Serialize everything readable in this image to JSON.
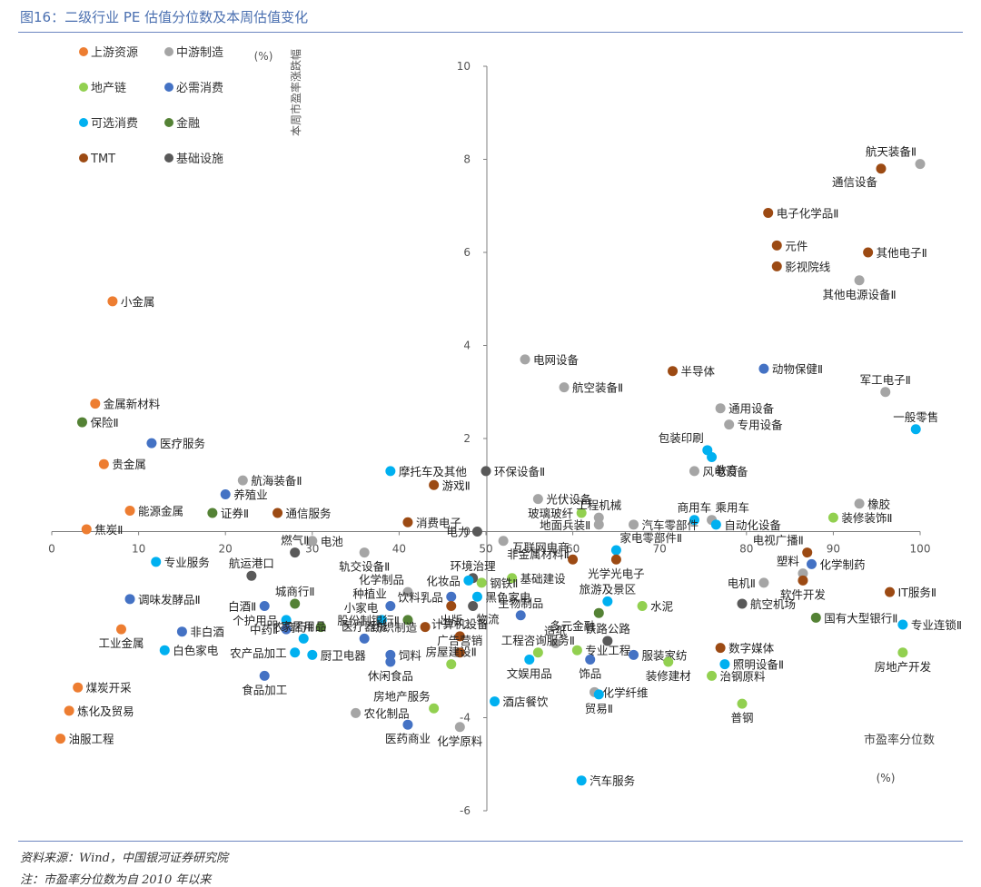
{
  "header": {
    "title": "图16：二级行业 PE 估值分位数及本周估值变化"
  },
  "footer": {
    "source": "资料来源：Wind，中国银河证券研究院",
    "note": "注：市盈率分位数为自 2010 年以来"
  },
  "colors": {
    "上游资源": "#ed7d31",
    "中游制造": "#a5a5a5",
    "地产链": "#92d050",
    "必需消费": "#4472c4",
    "可选消费": "#00b0f0",
    "金融": "#548235",
    "TMT": "#9c4a13",
    "基础设施": "#595959"
  },
  "chart_data": {
    "type": "scatter",
    "xlabel": "市盈率分位数",
    "ylabel": "本周市盈率涨跌幅",
    "x_unit": "(%)",
    "y_unit": "(%)",
    "xlim": [
      0,
      100
    ],
    "ylim": [
      -6,
      10
    ],
    "xticks": [
      "0",
      "10",
      "20",
      "30",
      "40",
      "50",
      "60",
      "70",
      "80",
      "90",
      "100"
    ],
    "yticks": [
      "-6",
      "-4",
      "-2",
      "0",
      "2",
      "4",
      "6",
      "8",
      "10"
    ],
    "legend": [
      "上游资源",
      "中游制造",
      "地产链",
      "必需消费",
      "可选消费",
      "金融",
      "TMT",
      "基础设施"
    ],
    "points": [
      {
        "name": "航天装备Ⅱ",
        "x": 100,
        "y": 7.9,
        "cat": "中游制造",
        "pos": "tl"
      },
      {
        "name": "通信设备",
        "x": 95.5,
        "y": 7.8,
        "cat": "TMT",
        "pos": "bl"
      },
      {
        "name": "电子化学品Ⅱ",
        "x": 82.5,
        "y": 6.85,
        "cat": "TMT",
        "pos": "r"
      },
      {
        "name": "元件",
        "x": 83.5,
        "y": 6.15,
        "cat": "TMT",
        "pos": "r"
      },
      {
        "name": "其他电子Ⅱ",
        "x": 94,
        "y": 6.0,
        "cat": "TMT",
        "pos": "r"
      },
      {
        "name": "影视院线",
        "x": 83.5,
        "y": 5.7,
        "cat": "TMT",
        "pos": "r"
      },
      {
        "name": "其他电源设备Ⅱ",
        "x": 93,
        "y": 5.4,
        "cat": "中游制造",
        "pos": "b"
      },
      {
        "name": "小金属",
        "x": 7,
        "y": 4.95,
        "cat": "上游资源",
        "pos": "r"
      },
      {
        "name": "电网设备",
        "x": 54.5,
        "y": 3.7,
        "cat": "中游制造",
        "pos": "r"
      },
      {
        "name": "半导体",
        "x": 71.5,
        "y": 3.45,
        "cat": "TMT",
        "pos": "r"
      },
      {
        "name": "动物保健Ⅱ",
        "x": 82,
        "y": 3.5,
        "cat": "必需消费",
        "pos": "r"
      },
      {
        "name": "航空装备Ⅱ",
        "x": 59,
        "y": 3.1,
        "cat": "中游制造",
        "pos": "r"
      },
      {
        "name": "军工电子Ⅱ",
        "x": 96,
        "y": 3.0,
        "cat": "中游制造",
        "pos": "t"
      },
      {
        "name": "金属新材料",
        "x": 5,
        "y": 2.75,
        "cat": "上游资源",
        "pos": "r"
      },
      {
        "name": "通用设备",
        "x": 77,
        "y": 2.65,
        "cat": "中游制造",
        "pos": "r"
      },
      {
        "name": "保险Ⅱ",
        "x": 3.5,
        "y": 2.35,
        "cat": "金融",
        "pos": "r"
      },
      {
        "name": "专用设备",
        "x": 78,
        "y": 2.3,
        "cat": "中游制造",
        "pos": "r"
      },
      {
        "name": "一般零售",
        "x": 99.5,
        "y": 2.2,
        "cat": "可选消费",
        "pos": "t"
      },
      {
        "name": "医疗服务",
        "x": 11.5,
        "y": 1.9,
        "cat": "必需消费",
        "pos": "r"
      },
      {
        "name": "包装印刷",
        "x": 75.5,
        "y": 1.75,
        "cat": "可选消费",
        "pos": "tl"
      },
      {
        "name": "教育",
        "x": 76,
        "y": 1.6,
        "cat": "可选消费",
        "pos": "br"
      },
      {
        "name": "贵金属",
        "x": 6,
        "y": 1.45,
        "cat": "上游资源",
        "pos": "r"
      },
      {
        "name": "摩托车及其他",
        "x": 39,
        "y": 1.3,
        "cat": "可选消费",
        "pos": "r"
      },
      {
        "name": "环保设备Ⅱ",
        "x": 50,
        "y": 1.3,
        "cat": "基础设施",
        "pos": "r"
      },
      {
        "name": "风电设备",
        "x": 74,
        "y": 1.3,
        "cat": "中游制造",
        "pos": "r"
      },
      {
        "name": "航海装备Ⅱ",
        "x": 22,
        "y": 1.1,
        "cat": "中游制造",
        "pos": "r"
      },
      {
        "name": "游戏Ⅱ",
        "x": 44,
        "y": 1.0,
        "cat": "TMT",
        "pos": "r"
      },
      {
        "name": "养殖业",
        "x": 20,
        "y": 0.8,
        "cat": "必需消费",
        "pos": "r"
      },
      {
        "name": "光伏设备",
        "x": 56,
        "y": 0.7,
        "cat": "中游制造",
        "pos": "r"
      },
      {
        "name": "橡胶",
        "x": 93,
        "y": 0.6,
        "cat": "中游制造",
        "pos": "r"
      },
      {
        "name": "能源金属",
        "x": 9,
        "y": 0.45,
        "cat": "上游资源",
        "pos": "r"
      },
      {
        "name": "证券Ⅱ",
        "x": 18.5,
        "y": 0.4,
        "cat": "金融",
        "pos": "r"
      },
      {
        "name": "通信服务",
        "x": 26,
        "y": 0.4,
        "cat": "TMT",
        "pos": "r"
      },
      {
        "name": "玻璃玻纤",
        "x": 61,
        "y": 0.4,
        "cat": "地产链",
        "pos": "l"
      },
      {
        "name": "工程机械",
        "x": 63,
        "y": 0.3,
        "cat": "中游制造",
        "pos": "t"
      },
      {
        "name": "商用车",
        "x": 74,
        "y": 0.25,
        "cat": "可选消费",
        "pos": "t"
      },
      {
        "name": "乘用车",
        "x": 76,
        "y": 0.25,
        "cat": "中游制造",
        "pos": "tr"
      },
      {
        "name": "装修装饰Ⅱ",
        "x": 90,
        "y": 0.3,
        "cat": "地产链",
        "pos": "r"
      },
      {
        "name": "地面兵装Ⅱ",
        "x": 63,
        "y": 0.15,
        "cat": "中游制造",
        "pos": "l"
      },
      {
        "name": "消费电子",
        "x": 41,
        "y": 0.2,
        "cat": "TMT",
        "pos": "r"
      },
      {
        "name": "汽车零部件",
        "x": 67,
        "y": 0.15,
        "cat": "中游制造",
        "pos": "r"
      },
      {
        "name": "自动化设备",
        "x": 76.5,
        "y": 0.15,
        "cat": "可选消费",
        "pos": "r"
      },
      {
        "name": "焦炭Ⅱ",
        "x": 4,
        "y": 0.05,
        "cat": "上游资源",
        "pos": "r"
      },
      {
        "name": "电力",
        "x": 49,
        "y": 0.0,
        "cat": "基础设施",
        "pos": "l"
      },
      {
        "name": "电池",
        "x": 30,
        "y": -0.2,
        "cat": "中游制造",
        "pos": "r"
      },
      {
        "name": "非金属材料Ⅱ",
        "x": 52,
        "y": -0.2,
        "cat": "中游制造",
        "pos": "br"
      },
      {
        "name": "家电零部件Ⅱ",
        "x": 65,
        "y": -0.4,
        "cat": "可选消费",
        "pos": "tr"
      },
      {
        "name": "电视广播Ⅱ",
        "x": 87,
        "y": -0.45,
        "cat": "TMT",
        "pos": "tl"
      },
      {
        "name": "专业服务",
        "x": 12,
        "y": -0.65,
        "cat": "可选消费",
        "pos": "r"
      },
      {
        "name": "轨交设备Ⅱ",
        "x": 36,
        "y": -0.45,
        "cat": "中游制造",
        "pos": "b"
      },
      {
        "name": "燃气Ⅱ",
        "x": 28,
        "y": -0.45,
        "cat": "基础设施",
        "pos": "t"
      },
      {
        "name": "互联网电商",
        "x": 60,
        "y": -0.6,
        "cat": "TMT",
        "pos": "tl"
      },
      {
        "name": "化学制药",
        "x": 87.5,
        "y": -0.7,
        "cat": "必需消费",
        "pos": "r"
      },
      {
        "name": "塑料",
        "x": 86.5,
        "y": -0.9,
        "cat": "中游制造",
        "pos": "tl"
      },
      {
        "name": "航运港口",
        "x": 23,
        "y": -0.95,
        "cat": "基础设施",
        "pos": "t"
      },
      {
        "name": "环境治理",
        "x": 48.5,
        "y": -1.0,
        "cat": "基础设施",
        "pos": "t"
      },
      {
        "name": "基础建设",
        "x": 53,
        "y": -1.0,
        "cat": "地产链",
        "pos": "r"
      },
      {
        "name": "光学光电子",
        "x": 65,
        "y": -0.6,
        "cat": "TMT",
        "pos": "b"
      },
      {
        "name": "化妆品",
        "x": 48,
        "y": -1.05,
        "cat": "可选消费",
        "pos": "l"
      },
      {
        "name": "钢铁Ⅱ",
        "x": 49.5,
        "y": -1.1,
        "cat": "地产链",
        "pos": "r"
      },
      {
        "name": "电机Ⅱ",
        "x": 82,
        "y": -1.1,
        "cat": "中游制造",
        "pos": "l"
      },
      {
        "name": "软件开发",
        "x": 86.5,
        "y": -1.05,
        "cat": "TMT",
        "pos": "b"
      },
      {
        "name": "IT服务Ⅱ",
        "x": 96.5,
        "y": -1.3,
        "cat": "TMT",
        "pos": "r"
      },
      {
        "name": "化学制品",
        "x": 41,
        "y": -1.3,
        "cat": "中游制造",
        "pos": "tl"
      },
      {
        "name": "饮料乳品",
        "x": 46,
        "y": -1.4,
        "cat": "必需消费",
        "pos": "l"
      },
      {
        "name": "黑色家电",
        "x": 49,
        "y": -1.4,
        "cat": "可选消费",
        "pos": "r"
      },
      {
        "name": "调味发酵品Ⅱ",
        "x": 9,
        "y": -1.45,
        "cat": "必需消费",
        "pos": "r"
      },
      {
        "name": "城商行Ⅱ",
        "x": 28,
        "y": -1.55,
        "cat": "金融",
        "pos": "t"
      },
      {
        "name": "旅游及景区",
        "x": 64,
        "y": -1.5,
        "cat": "可选消费",
        "pos": "t"
      },
      {
        "name": "水泥",
        "x": 68,
        "y": -1.6,
        "cat": "地产链",
        "pos": "r"
      },
      {
        "name": "航空机场",
        "x": 79.5,
        "y": -1.55,
        "cat": "基础设施",
        "pos": "r"
      },
      {
        "name": "种植业",
        "x": 39,
        "y": -1.6,
        "cat": "必需消费",
        "pos": "tl"
      },
      {
        "name": "白酒Ⅱ",
        "x": 24.5,
        "y": -1.6,
        "cat": "必需消费",
        "pos": "l"
      },
      {
        "name": "出版",
        "x": 46,
        "y": -1.6,
        "cat": "TMT",
        "pos": "b"
      },
      {
        "name": "物流",
        "x": 48.5,
        "y": -1.6,
        "cat": "基础设施",
        "pos": "br"
      },
      {
        "name": "国有大型银行Ⅱ",
        "x": 88,
        "y": -1.85,
        "cat": "金融",
        "pos": "r"
      },
      {
        "name": "生物制品",
        "x": 54,
        "y": -1.8,
        "cat": "必需消费",
        "pos": "t"
      },
      {
        "name": "小家电",
        "x": 38,
        "y": -1.9,
        "cat": "可选消费",
        "pos": "tl"
      },
      {
        "name": "股份制银行Ⅱ",
        "x": 41,
        "y": -1.9,
        "cat": "金融",
        "pos": "l"
      },
      {
        "name": "多元金融",
        "x": 63,
        "y": -1.75,
        "cat": "金融",
        "pos": "bl"
      },
      {
        "name": "个护用品",
        "x": 27,
        "y": -1.9,
        "cat": "可选消费",
        "pos": "l"
      },
      {
        "name": "农商行Ⅱ",
        "x": 31,
        "y": -2.05,
        "cat": "金融",
        "pos": "l"
      },
      {
        "name": "专业连锁Ⅱ",
        "x": 98,
        "y": -2.0,
        "cat": "可选消费",
        "pos": "r"
      },
      {
        "name": "纺织制造",
        "x": 43,
        "y": -2.05,
        "cat": "TMT",
        "pos": "l"
      },
      {
        "name": "中药Ⅱ",
        "x": 27,
        "y": -2.1,
        "cat": "必需消费",
        "pos": "l"
      },
      {
        "name": "非白酒",
        "x": 15,
        "y": -2.15,
        "cat": "必需消费",
        "pos": "r"
      },
      {
        "name": "工业金属",
        "x": 8,
        "y": -2.1,
        "cat": "上游资源",
        "pos": "b"
      },
      {
        "name": "铁路公路",
        "x": 64,
        "y": -2.35,
        "cat": "基础设施",
        "pos": "t"
      },
      {
        "name": "计算机设备",
        "x": 47,
        "y": -2.25,
        "cat": "TMT",
        "pos": "t"
      },
      {
        "name": "医疗器械",
        "x": 36,
        "y": -2.3,
        "cat": "必需消费",
        "pos": "t"
      },
      {
        "name": "家居用品",
        "x": 29,
        "y": -2.3,
        "cat": "可选消费",
        "pos": "t"
      },
      {
        "name": "造纸",
        "x": 58,
        "y": -2.4,
        "cat": "中游制造",
        "pos": "t"
      },
      {
        "name": "专业工程",
        "x": 60.5,
        "y": -2.55,
        "cat": "地产链",
        "pos": "r"
      },
      {
        "name": "白色家电",
        "x": 13,
        "y": -2.55,
        "cat": "可选消费",
        "pos": "r"
      },
      {
        "name": "数字媒体",
        "x": 77,
        "y": -2.5,
        "cat": "TMT",
        "pos": "r"
      },
      {
        "name": "服装家纺",
        "x": 67,
        "y": -2.65,
        "cat": "必需消费",
        "pos": "r"
      },
      {
        "name": "广告营销",
        "x": 47,
        "y": -2.6,
        "cat": "TMT",
        "pos": "t"
      },
      {
        "name": "工程咨询服务Ⅱ",
        "x": 56,
        "y": -2.6,
        "cat": "地产链",
        "pos": "t"
      },
      {
        "name": "农产品加工",
        "x": 28,
        "y": -2.6,
        "cat": "可选消费",
        "pos": "l"
      },
      {
        "name": "厨卫电器",
        "x": 30,
        "y": -2.65,
        "cat": "可选消费",
        "pos": "r"
      },
      {
        "name": "饲料",
        "x": 39,
        "y": -2.65,
        "cat": "必需消费",
        "pos": "r"
      },
      {
        "name": "房屋建设Ⅱ",
        "x": 46,
        "y": -2.85,
        "cat": "地产链",
        "pos": "t"
      },
      {
        "name": "饰品",
        "x": 62,
        "y": -2.75,
        "cat": "必需消费",
        "pos": "b"
      },
      {
        "name": "照明设备Ⅱ",
        "x": 77.5,
        "y": -2.85,
        "cat": "可选消费",
        "pos": "r"
      },
      {
        "name": "装修建材",
        "x": 71,
        "y": -2.8,
        "cat": "地产链",
        "pos": "b"
      },
      {
        "name": "文娱用品",
        "x": 55,
        "y": -2.75,
        "cat": "可选消费",
        "pos": "b"
      },
      {
        "name": "休闲食品",
        "x": 39,
        "y": -2.8,
        "cat": "必需消费",
        "pos": "b"
      },
      {
        "name": "治钢原料",
        "x": 76,
        "y": -3.1,
        "cat": "地产链",
        "pos": "r"
      },
      {
        "name": "食品加工",
        "x": 24.5,
        "y": -3.1,
        "cat": "必需消费",
        "pos": "b"
      },
      {
        "name": "化学纤维",
        "x": 62.5,
        "y": -3.45,
        "cat": "中游制造",
        "pos": "r"
      },
      {
        "name": "煤炭开采",
        "x": 3,
        "y": -3.35,
        "cat": "上游资源",
        "pos": "r"
      },
      {
        "name": "酒店餐饮",
        "x": 51,
        "y": -3.65,
        "cat": "可选消费",
        "pos": "r"
      },
      {
        "name": "贸易Ⅱ",
        "x": 63,
        "y": -3.5,
        "cat": "可选消费",
        "pos": "b"
      },
      {
        "name": "普钢",
        "x": 79.5,
        "y": -3.7,
        "cat": "地产链",
        "pos": "b"
      },
      {
        "name": "房地产服务",
        "x": 44,
        "y": -3.8,
        "cat": "地产链",
        "pos": "tl"
      },
      {
        "name": "炼化及贸易",
        "x": 2,
        "y": -3.85,
        "cat": "上游资源",
        "pos": "r"
      },
      {
        "name": "农化制品",
        "x": 35,
        "y": -3.9,
        "cat": "中游制造",
        "pos": "r"
      },
      {
        "name": "医药商业",
        "x": 41,
        "y": -4.15,
        "cat": "必需消费",
        "pos": "b"
      },
      {
        "name": "化学原料",
        "x": 47,
        "y": -4.2,
        "cat": "中游制造",
        "pos": "b"
      },
      {
        "name": "油服工程",
        "x": 1,
        "y": -4.45,
        "cat": "上游资源",
        "pos": "r"
      },
      {
        "name": "房地产开发",
        "x": 98,
        "y": -2.6,
        "cat": "地产链",
        "pos": "b"
      },
      {
        "name": "汽车服务",
        "x": 61,
        "y": -5.35,
        "cat": "可选消费",
        "pos": "r"
      }
    ]
  }
}
